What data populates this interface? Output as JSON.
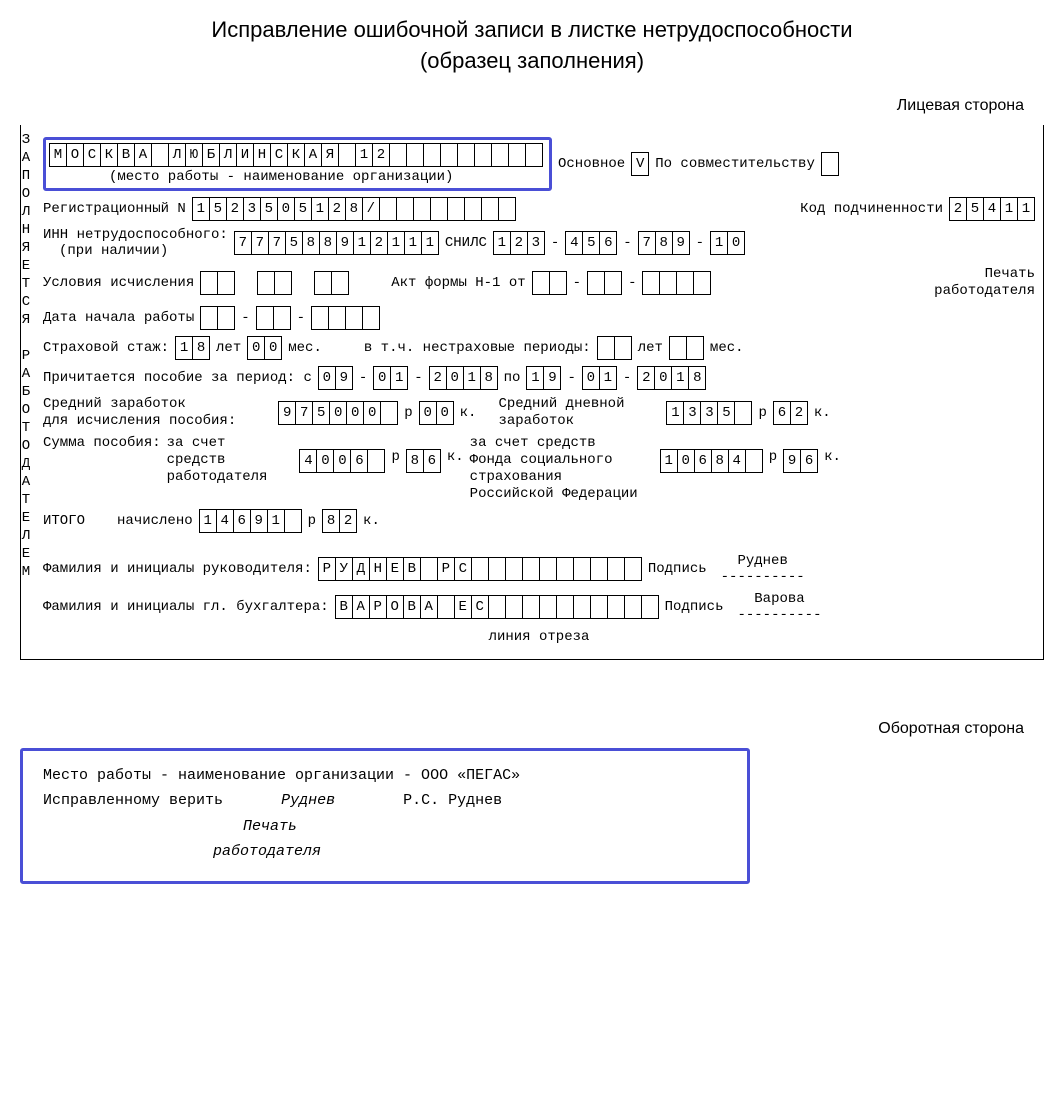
{
  "title_l1": "Исправление ошибочной записи в листке нетрудоспособности",
  "title_l2": "(образец заполнения)",
  "front_side": "Лицевая сторона",
  "back_side": "Оборотная сторона",
  "vertical": "ЗАПОЛНЯЕТСЯ РАБОТОДАТЕЛЕМ",
  "workplace_chars": [
    "М",
    "О",
    "С",
    "К",
    "В",
    "А",
    "",
    "Л",
    "Ю",
    "Б",
    "Л",
    "И",
    "Н",
    "С",
    "К",
    "А",
    "Я",
    "",
    "1",
    "2",
    "",
    "",
    "",
    "",
    "",
    "",
    "",
    "",
    ""
  ],
  "workplace_sub": "(место работы - наименование организации)",
  "osn_label": "Основное",
  "osn_val": "V",
  "sovm_label": "По совместительству",
  "sovm_val": "",
  "reg_label": "Регистрационный N",
  "reg_chars": [
    "1",
    "5",
    "2",
    "3",
    "5",
    "0",
    "5",
    "1",
    "2",
    "8",
    "/",
    "",
    "",
    "",
    "",
    "",
    "",
    "",
    ""
  ],
  "kod_label": "Код подчиненности",
  "kod_chars": [
    "2",
    "5",
    "4",
    "1",
    "1"
  ],
  "inn_label": "ИНН нетрудоспособного:",
  "inn_sub": "(при наличии)",
  "inn_chars": [
    "7",
    "7",
    "7",
    "5",
    "8",
    "8",
    "9",
    "1",
    "2",
    "1",
    "1",
    "1"
  ],
  "snils_label": "СНИЛС",
  "snils_g1": [
    "1",
    "2",
    "3"
  ],
  "snils_g2": [
    "4",
    "5",
    "6"
  ],
  "snils_g3": [
    "7",
    "8",
    "9"
  ],
  "snils_g4": [
    "1",
    "0"
  ],
  "dash": "-",
  "usl_label": "Условия исчисления",
  "usl_g1": [
    "",
    ""
  ],
  "usl_g2": [
    "",
    ""
  ],
  "usl_g3": [
    "",
    ""
  ],
  "akt_label": "Акт формы Н-1 от",
  "akt_g1": [
    "",
    ""
  ],
  "akt_g2": [
    "",
    ""
  ],
  "akt_g3": [
    "",
    "",
    "",
    ""
  ],
  "pechat_l1": "Печать",
  "pechat_l2": "работодателя",
  "start_label": "Дата начала работы",
  "start_g1": [
    "",
    ""
  ],
  "start_g2": [
    "",
    ""
  ],
  "start_g3": [
    "",
    "",
    "",
    ""
  ],
  "stazh_label": "Страховой стаж:",
  "stazh_y": [
    "1",
    "8"
  ],
  "let": "лет",
  "stazh_m": [
    "0",
    "0"
  ],
  "mes": "мес.",
  "nestr_label": "в т.ч. нестраховые периоды:",
  "nestr_y": [
    "",
    ""
  ],
  "nestr_m": [
    "",
    ""
  ],
  "benefit_label": "Причитается пособие за период: с",
  "ben_from_d": [
    "0",
    "9"
  ],
  "ben_from_m": [
    "0",
    "1"
  ],
  "ben_from_y": [
    "2",
    "0",
    "1",
    "8"
  ],
  "po": "по",
  "ben_to_d": [
    "1",
    "9"
  ],
  "ben_to_m": [
    "0",
    "1"
  ],
  "ben_to_y": [
    "2",
    "0",
    "1",
    "8"
  ],
  "avg_l1": "Средний заработок",
  "avg_l2": "для исчисления пособия:",
  "avg_r": [
    "9",
    "7",
    "5",
    "0",
    "0",
    "0",
    ""
  ],
  "rub": "р",
  "avg_k": [
    "0",
    "0"
  ],
  "kop": "к.",
  "day_l1": "Средний дневной",
  "day_l2": "заработок",
  "day_r": [
    "1",
    "3",
    "3",
    "5",
    ""
  ],
  "day_k": [
    "6",
    "2"
  ],
  "sum_label": "Сумма пособия:",
  "emp_l1": "за счет",
  "emp_l2": "средств",
  "emp_l3": "работодателя",
  "emp_r": [
    "4",
    "0",
    "0",
    "6",
    ""
  ],
  "emp_k": [
    "8",
    "6"
  ],
  "fss_l1": "за счет средств",
  "fss_l2": "Фонда социального",
  "fss_l3": "страхования",
  "fss_l4": "Российской Федерации",
  "fss_r": [
    "1",
    "0",
    "6",
    "8",
    "4",
    ""
  ],
  "fss_k": [
    "9",
    "6"
  ],
  "itogo": "ИТОГО",
  "nachisl": "начислено",
  "tot_r": [
    "1",
    "4",
    "6",
    "9",
    "1",
    ""
  ],
  "tot_k": [
    "8",
    "2"
  ],
  "ruk_label": "Фамилия и инициалы руководителя:",
  "ruk_chars": [
    "Р",
    "У",
    "Д",
    "Н",
    "Е",
    "В",
    "",
    "Р",
    "С",
    "",
    "",
    "",
    "",
    "",
    "",
    "",
    "",
    "",
    ""
  ],
  "podpis": "Подпись",
  "ruk_name": "Руднев",
  "dashes": "----------",
  "buh_label": "Фамилия и инициалы гл. бухгалтера:",
  "buh_chars": [
    "В",
    "А",
    "Р",
    "О",
    "В",
    "А",
    "",
    "Е",
    "С",
    "",
    "",
    "",
    "",
    "",
    "",
    "",
    "",
    "",
    ""
  ],
  "buh_name": "Варова",
  "cutline": "линия отреза",
  "back_l1": "Место работы - наименование организации - ООО «ПЕГАС»",
  "back_l2a": "Исправленному верить",
  "back_l2b": "Руднев",
  "back_l2c": "Р.С. Руднев",
  "back_l3": "Печать",
  "back_l4": "работодателя"
}
